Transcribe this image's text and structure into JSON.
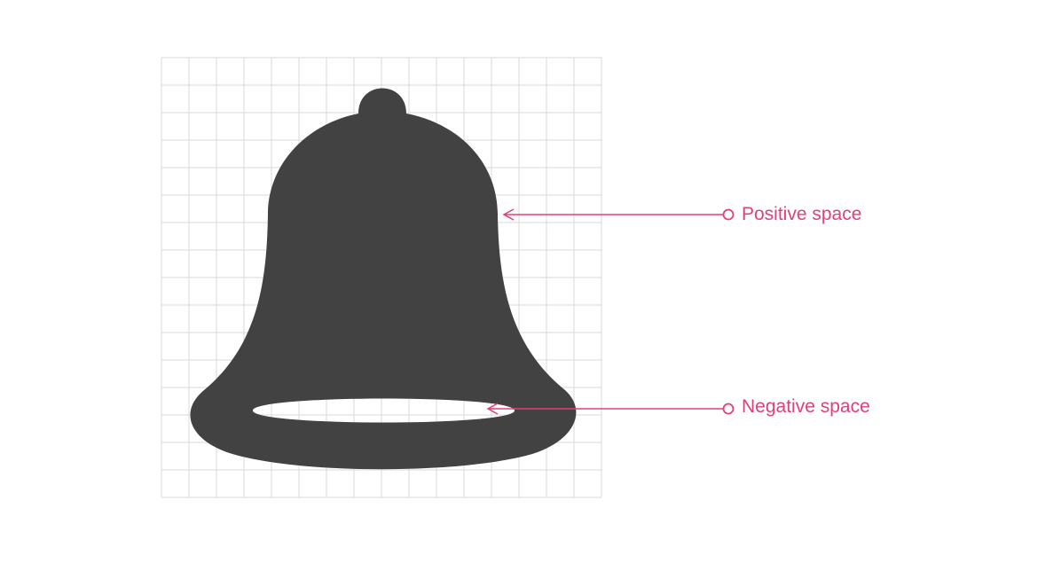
{
  "colors": {
    "background": "#ffffff",
    "grid": "#d9d9d9",
    "bell": "#424242",
    "accent": "#e0407b"
  },
  "icon": "bell-icon",
  "grid": {
    "columns": 16,
    "rows": 16
  },
  "annotations": [
    {
      "id": "positive",
      "label": "Positive space"
    },
    {
      "id": "negative",
      "label": "Negative space"
    }
  ]
}
